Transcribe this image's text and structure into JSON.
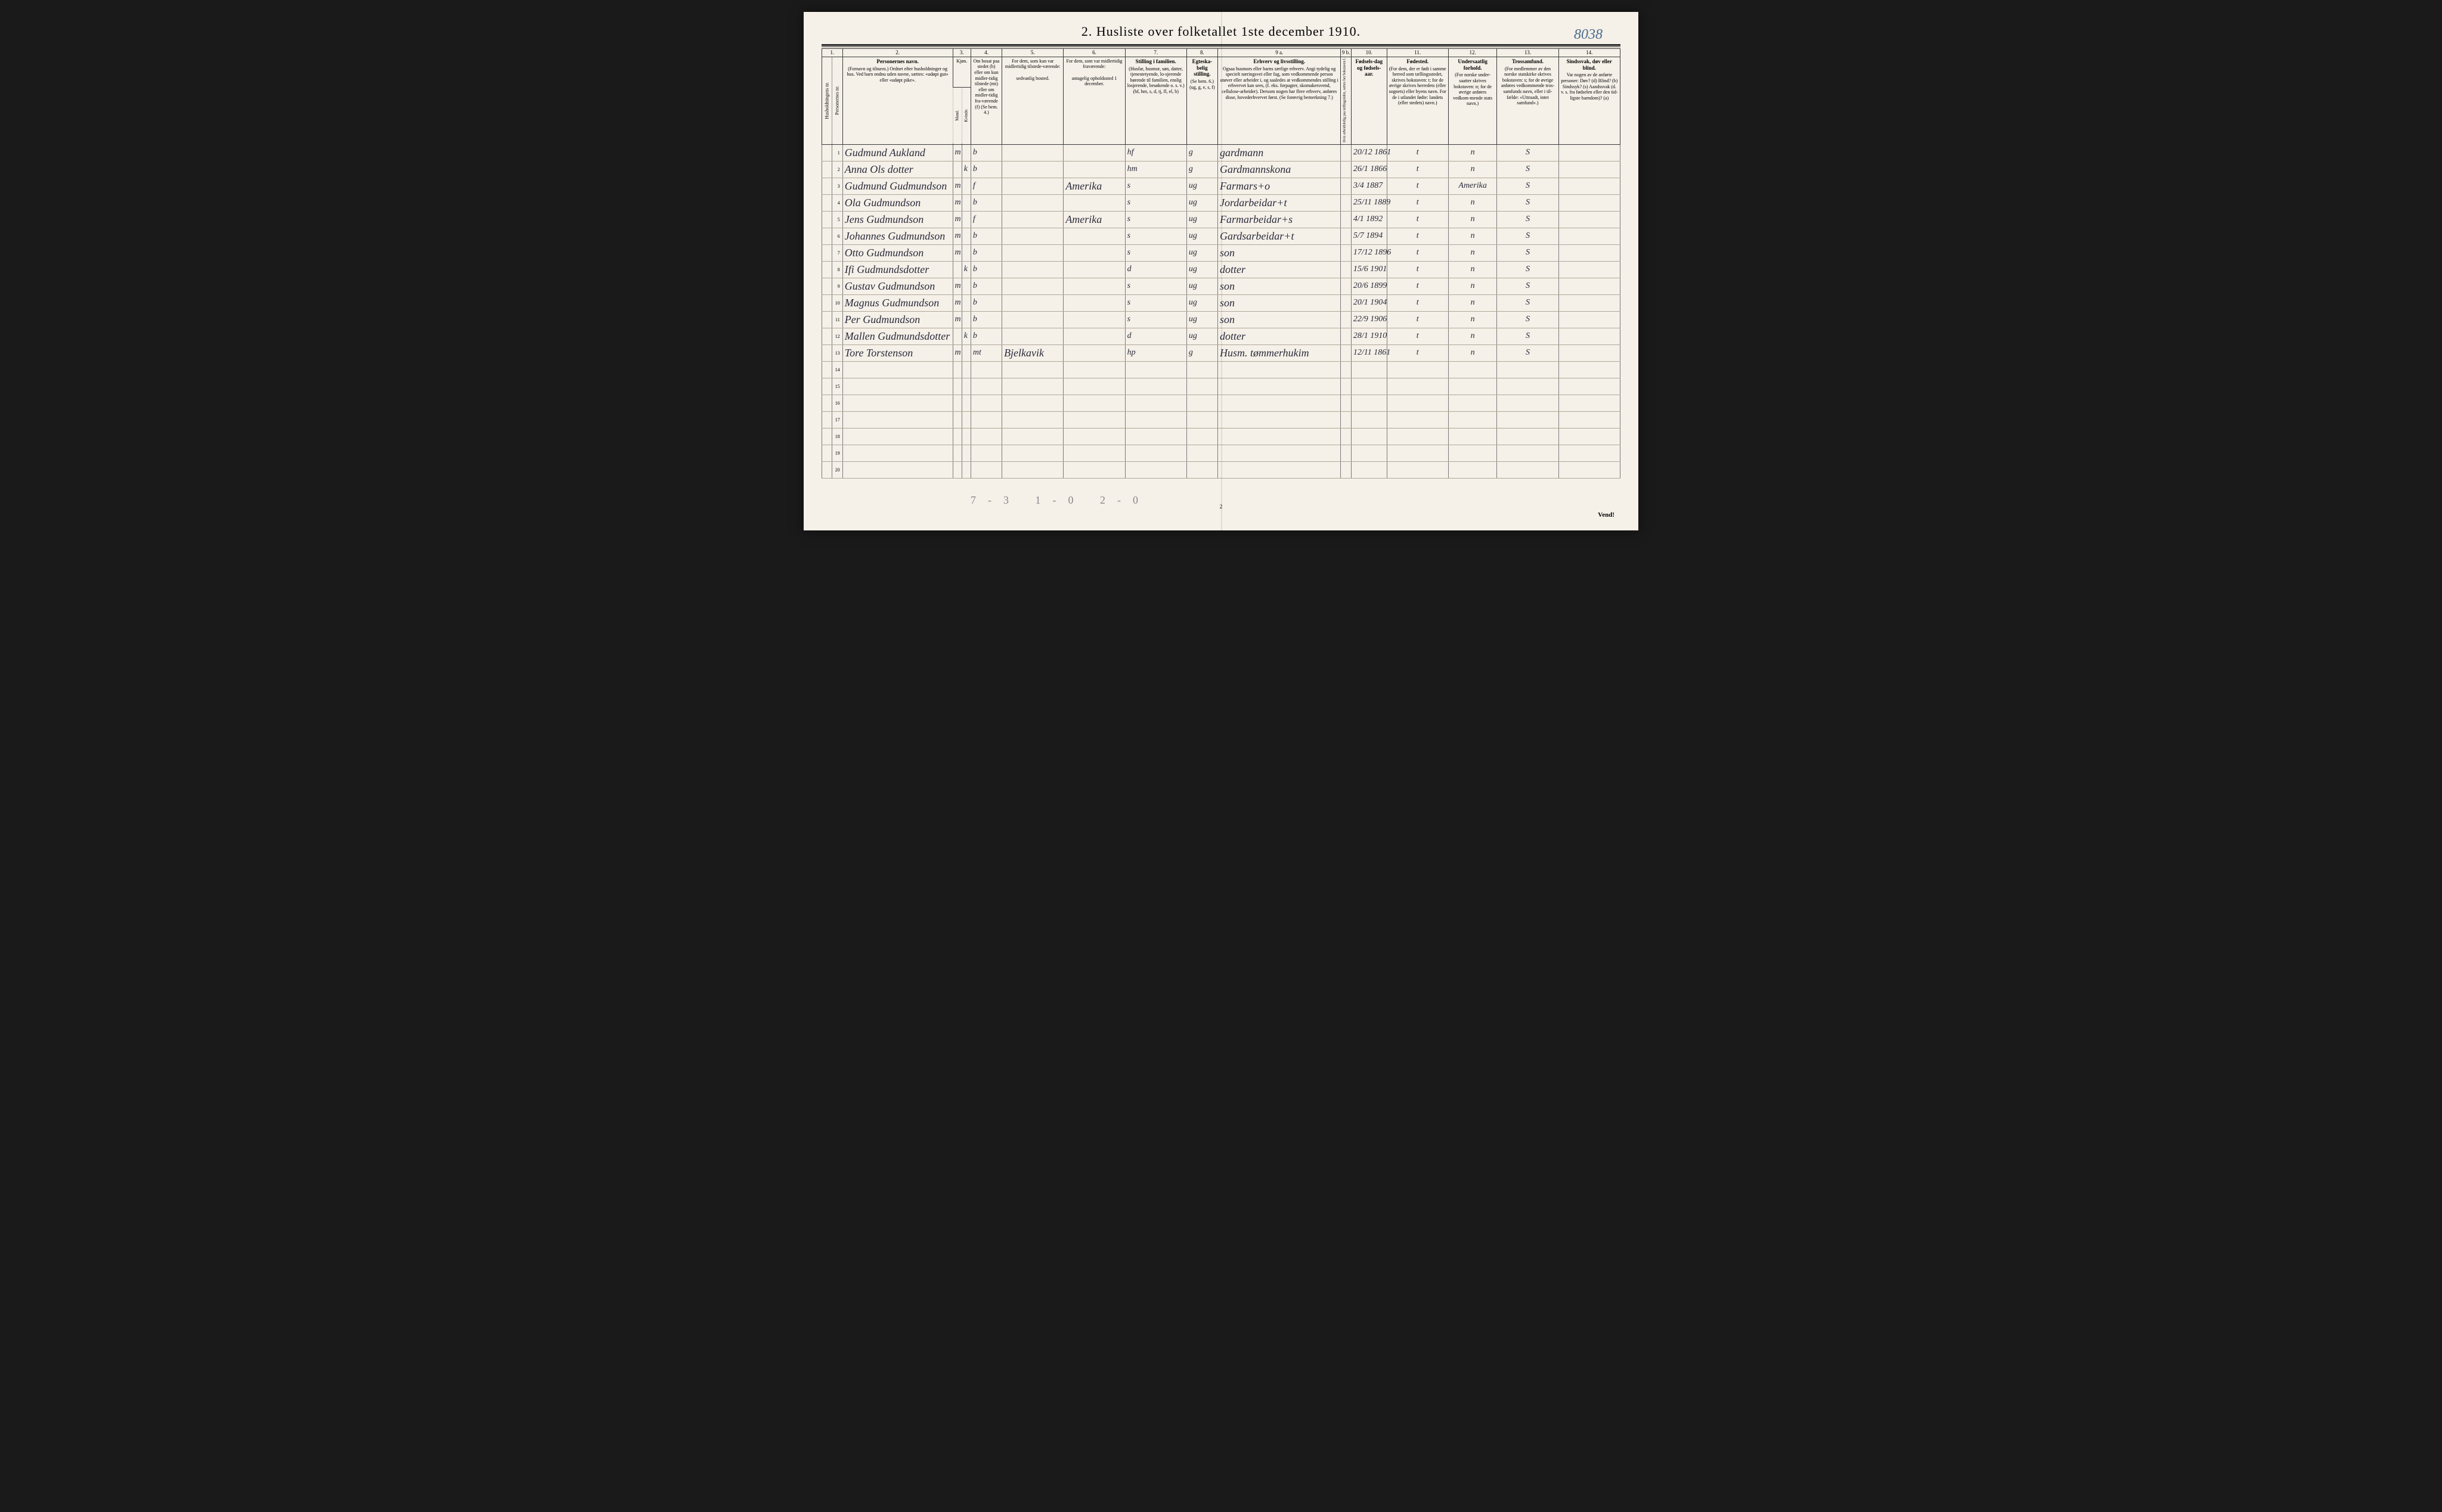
{
  "title": "2. Husliste over folketallet 1ste december 1910.",
  "annotation": "8038",
  "footer": "Vend!",
  "pageNum": "2",
  "pencil": "7-3   1-0   2-0",
  "colNums": [
    "1.",
    "2.",
    "3.",
    "4.",
    "5.",
    "6.",
    "7.",
    "8.",
    "9 a.",
    "9 b.",
    "10.",
    "11.",
    "12.",
    "13.",
    "14."
  ],
  "headers": {
    "c1a": "Husholdningens nr.",
    "c1b": "Personernes nr.",
    "c2": "Personernes navn.",
    "c2s": "(Fornavn og tilnavn.) Ordnet efter husholdninger og hus. Ved barn endnu uden navne, sættes: «udøpt gut» eller «udøpt pike».",
    "c3": "Kjøn.",
    "c3m": "Mand.",
    "c3k": "Kvinde.",
    "c4": "Om bosat paa stedet (b) eller om kun midler-tidig tilstede (mt) eller om midler-tidig fra-værende (f) (Se bem. 4.)",
    "c5": "For dem, som kun var midlertidig tilstede-værende:",
    "c5s": "sedvanlig bosted.",
    "c6": "For dem, som var midlertidig fraværende:",
    "c6s": "antagelig opholdssted 1 december.",
    "c7": "Stilling i familien.",
    "c7s": "(Husfar, husmor, søn, datter, tjenestetyende, lo-sjerende hørende til familien, enslig losjerende, besøkende o. s. v.) (hf, hm, s, d, tj, fl, el, b)",
    "c8": "Egteska-belig stilling.",
    "c8s": "(Se bem. 6.) (ug, g, e, s, f)",
    "c9a": "Erhverv og livsstilling.",
    "c9as": "Ogsaa husmors eller barns særlige erhverv. Angi tydelig og specielt næringsvei eller fag, som vedkommende person utøver eller arbeider i, og saaledes at vedkommendes stilling i erhvervet kan sees, (f. eks. forpagter, skomakersvend, cellulose-arbeider). Dersom nogen har flere erhverv, anføres disse, hovederhvervet først. (Se forøvrig bemerkning 7.)",
    "c9b": "Hvis arbeidsledig paa tællingstiden, sættes her bokstaven l.",
    "c10": "Fødsels-dag og fødsels-aar.",
    "c11": "Fødested.",
    "c11s": "(For dem, der er født i samme herred som tællingsstedet, skrives bokstaven: t; for de øvrige skrives herredets (eller sognets) eller byens navn. For de i utlandet fødte: landets (eller stedets) navn.)",
    "c12": "Undersaatlig forhold.",
    "c12s": "(For norske under-saatter skrives bokstaven: n; for de øvrige anføres vedkom-mende stats navn.)",
    "c13": "Trossamfund.",
    "c13s": "(For medlemmer av den norske statskirke skrives bokstaven: s; for de øvrige anføres vedkommende tros-samfunds navn, eller i til-fælde: «Uttraadt, intet samfund».)",
    "c14": "Sindssvak, døv eller blind.",
    "c14s": "Var nogen av de anførte personer: Døv? (d) Blind? (b) Sindssyk? (s) Aandssvak (d. v. s. fra fødselen eller den tid-ligste barndom)? (a)"
  },
  "colWidths": {
    "c1a": 16,
    "c1b": 16,
    "c2": 170,
    "c3m": 14,
    "c3k": 14,
    "c4": 48,
    "c5": 95,
    "c6": 95,
    "c7": 95,
    "c8": 48,
    "c9a": 190,
    "c9b": 16,
    "c10": 55,
    "c11": 95,
    "c12": 75,
    "c13": 95,
    "c14": 95
  },
  "rows": [
    {
      "n": "1",
      "name": "Gudmund Aukland",
      "mk": "m",
      "b": "b",
      "c5": "",
      "c6": "",
      "fam": "hf",
      "eg": "g",
      "erh": "gardmann",
      "fd": "20/12 1861",
      "fs": "t",
      "us": "n",
      "tr": "S"
    },
    {
      "n": "2",
      "name": "Anna Ols dotter",
      "mk": "k",
      "b": "b",
      "c5": "",
      "c6": "",
      "fam": "hm",
      "eg": "g",
      "erh": "Gardmannskona",
      "fd": "26/1 1866",
      "fs": "t",
      "us": "n",
      "tr": "S"
    },
    {
      "n": "3",
      "name": "Gudmund Gudmundson",
      "mk": "m",
      "b": "f",
      "c5": "",
      "c6": "Amerika",
      "fam": "s",
      "eg": "ug",
      "erh": "Farmars+o",
      "fd": "3/4 1887",
      "fs": "t",
      "us": "Amerika",
      "tr": "S"
    },
    {
      "n": "4",
      "name": "Ola Gudmundson",
      "mk": "m",
      "b": "b",
      "c5": "",
      "c6": "",
      "fam": "s",
      "eg": "ug",
      "erh": "Jordarbeidar+t",
      "fd": "25/11 1889",
      "fs": "t",
      "us": "n",
      "tr": "S"
    },
    {
      "n": "5",
      "name": "Jens Gudmundson",
      "mk": "m",
      "b": "f",
      "c5": "",
      "c6": "Amerika",
      "fam": "s",
      "eg": "ug",
      "erh": "Farmarbeidar+s",
      "fd": "4/1 1892",
      "fs": "t",
      "us": "n",
      "tr": "S"
    },
    {
      "n": "6",
      "name": "Johannes Gudmundson",
      "mk": "m",
      "b": "b",
      "c5": "",
      "c6": "",
      "fam": "s",
      "eg": "ug",
      "erh": "Gardsarbeidar+t",
      "fd": "5/7 1894",
      "fs": "t",
      "us": "n",
      "tr": "S"
    },
    {
      "n": "7",
      "name": "Otto Gudmundson",
      "mk": "m",
      "b": "b",
      "c5": "",
      "c6": "",
      "fam": "s",
      "eg": "ug",
      "erh": "son",
      "fd": "17/12 1896",
      "fs": "t",
      "us": "n",
      "tr": "S"
    },
    {
      "n": "8",
      "name": "Ifi Gudmundsdotter",
      "mk": "k",
      "b": "b",
      "c5": "",
      "c6": "",
      "fam": "d",
      "eg": "ug",
      "erh": "dotter",
      "fd": "15/6 1901",
      "fs": "t",
      "us": "n",
      "tr": "S"
    },
    {
      "n": "9",
      "name": "Gustav Gudmundson",
      "mk": "m",
      "b": "b",
      "c5": "",
      "c6": "",
      "fam": "s",
      "eg": "ug",
      "erh": "son",
      "fd": "20/6 1899",
      "fs": "t",
      "us": "n",
      "tr": "S"
    },
    {
      "n": "10",
      "name": "Magnus Gudmundson",
      "mk": "m",
      "b": "b",
      "c5": "",
      "c6": "",
      "fam": "s",
      "eg": "ug",
      "erh": "son",
      "fd": "20/1 1904",
      "fs": "t",
      "us": "n",
      "tr": "S"
    },
    {
      "n": "11",
      "name": "Per Gudmundson",
      "mk": "m",
      "b": "b",
      "c5": "",
      "c6": "",
      "fam": "s",
      "eg": "ug",
      "erh": "son",
      "fd": "22/9 1906",
      "fs": "t",
      "us": "n",
      "tr": "S"
    },
    {
      "n": "12",
      "name": "Mallen Gudmundsdotter",
      "mk": "k",
      "b": "b",
      "c5": "",
      "c6": "",
      "fam": "d",
      "eg": "ug",
      "erh": "dotter",
      "fd": "28/1 1910",
      "fs": "t",
      "us": "n",
      "tr": "S"
    },
    {
      "n": "13",
      "name": "Tore Torstenson",
      "mk": "m",
      "b": "mt",
      "c5": "Bjelkavik",
      "c6": "",
      "fam": "hp",
      "eg": "g",
      "erh": "Husm. tømmerhukim",
      "fd": "12/11 1861",
      "fs": "t",
      "us": "n",
      "tr": "S"
    },
    {
      "n": "14"
    },
    {
      "n": "15"
    },
    {
      "n": "16"
    },
    {
      "n": "17"
    },
    {
      "n": "18"
    },
    {
      "n": "19"
    },
    {
      "n": "20"
    }
  ]
}
